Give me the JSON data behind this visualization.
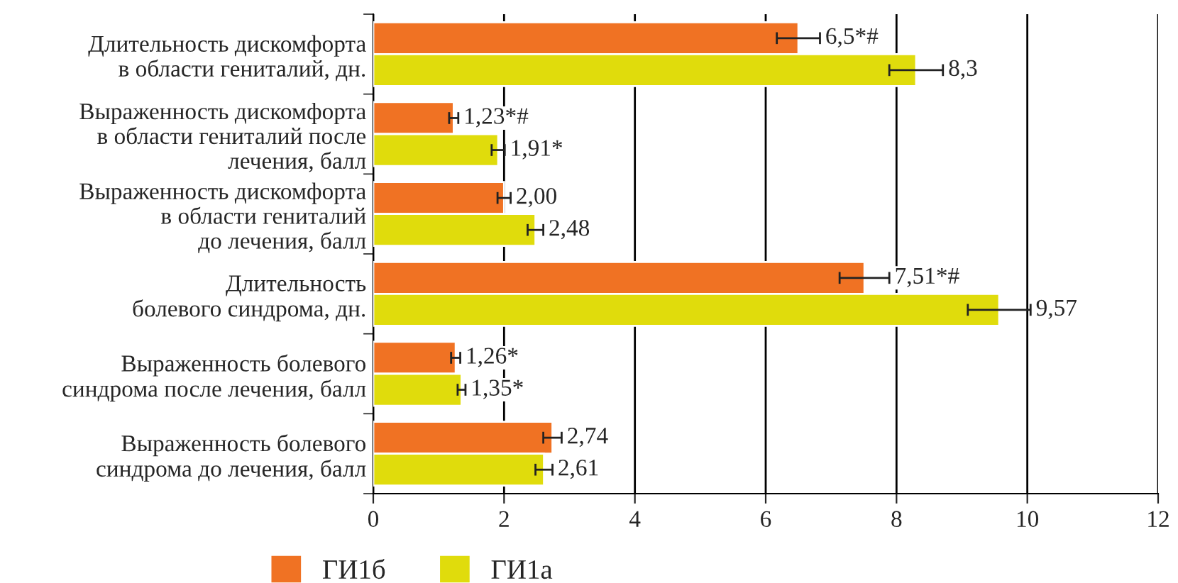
{
  "chart_data": {
    "type": "bar",
    "orientation": "horizontal",
    "categories": [
      "Длительность дискомфорта\nв области гениталий, дн.",
      "Выраженность дискомфорта\nв области гениталий после\nлечения, балл",
      "Выраженность дискомфорта\nв области гениталий\nдо лечения, балл",
      "Длительность\nболевого синдрома, дн.",
      "Выраженность болевого\nсиндрома после лечения, балл",
      "Выраженность болевого\nсиндрома до лечения, балл"
    ],
    "series": [
      {
        "name": "ГИ1б",
        "color": "#f07223",
        "values": [
          6.5,
          1.23,
          2.0,
          7.51,
          1.26,
          2.74
        ],
        "errors": [
          0.33,
          0.07,
          0.1,
          0.38,
          0.07,
          0.14
        ],
        "value_labels": [
          "6,5*#",
          "1,23*#",
          "2,00",
          "7,51*#",
          "1,26*",
          "2,74"
        ]
      },
      {
        "name": "ГИ1а",
        "color": "#e0dc0c",
        "values": [
          8.3,
          1.91,
          2.48,
          9.57,
          1.35,
          2.61
        ],
        "errors": [
          0.41,
          0.1,
          0.12,
          0.48,
          0.06,
          0.13
        ],
        "value_labels": [
          "8,3",
          "1,91*",
          "2,48",
          "9,57",
          "1,35*",
          "2,61"
        ]
      }
    ],
    "xlim": [
      0,
      12
    ],
    "xticks": [
      0,
      2,
      4,
      6,
      8,
      10,
      12
    ],
    "grid": "x",
    "legend": "bottom"
  }
}
